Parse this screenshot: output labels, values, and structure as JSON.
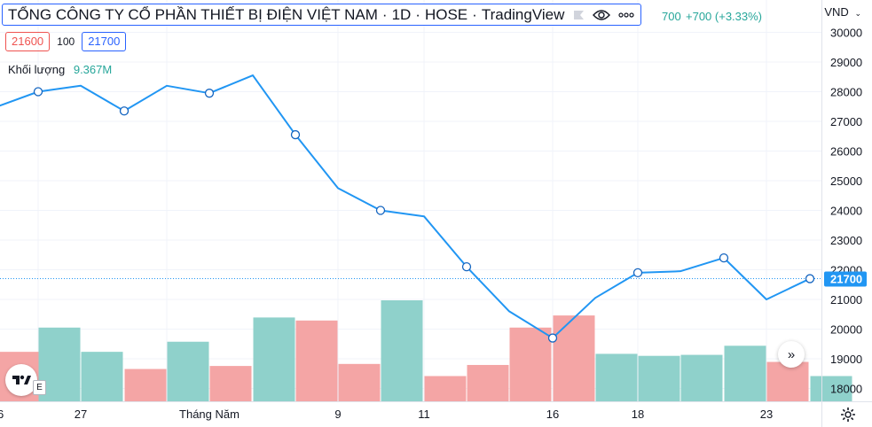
{
  "legend": {
    "title": "TỔNG CÔNG TY CỔ PHẦN THIẾT BỊ ĐIỆN VIỆT NAM",
    "interval": "1D",
    "exchange": "HOSE",
    "provider": "TradingView",
    "icons": [
      "flag-icon",
      "eye-icon",
      "more-icon"
    ],
    "change_partial": "700",
    "change": "+700 (+3.33%)",
    "open_price": "21600",
    "lot": "100",
    "close_price": "21700"
  },
  "volume": {
    "label": "Khối lượng",
    "value": "9.367M"
  },
  "currency": "VND",
  "last_price_label": "21700",
  "colors": {
    "line": "#2196f3",
    "up_volume": "#8fd1cb",
    "down_volume": "#f4a5a5",
    "price_tag": "#2196f3",
    "text_green": "#26a69a",
    "text_red": "#ef5350"
  },
  "chart_data": {
    "type": "line",
    "y_ticks": [
      "30000",
      "29000",
      "28000",
      "27000",
      "26000",
      "25000",
      "24000",
      "23000",
      "22000",
      "21000",
      "20000",
      "19000",
      "18000"
    ],
    "ylim": [
      17800,
      30300
    ],
    "x_ticks": [
      "6",
      "27",
      "Tháng Năm",
      "9",
      "11",
      "16",
      "18",
      "23"
    ],
    "series": [
      {
        "values": [
          27500,
          28000,
          28200,
          27350,
          28200,
          27950,
          28550,
          26550,
          24750,
          24000,
          23800,
          22100,
          20600,
          19700,
          21050,
          21900,
          21950,
          22400,
          21000,
          21700
        ],
        "markers": [
          false,
          true,
          false,
          true,
          false,
          true,
          false,
          true,
          false,
          true,
          false,
          true,
          false,
          true,
          false,
          true,
          false,
          true,
          false,
          true
        ]
      }
    ],
    "volume_bars": [
      {
        "dir": "down",
        "level": 0.49
      },
      {
        "dir": "up",
        "level": 0.73
      },
      {
        "dir": "up",
        "level": 0.49
      },
      {
        "dir": "down",
        "level": 0.32
      },
      {
        "dir": "up",
        "level": 0.59
      },
      {
        "dir": "down",
        "level": 0.35
      },
      {
        "dir": "up",
        "level": 0.83
      },
      {
        "dir": "down",
        "level": 0.8
      },
      {
        "dir": "down",
        "level": 0.37
      },
      {
        "dir": "up",
        "level": 1.0
      },
      {
        "dir": "down",
        "level": 0.25
      },
      {
        "dir": "down",
        "level": 0.36
      },
      {
        "dir": "down",
        "level": 0.73
      },
      {
        "dir": "down",
        "level": 0.85
      },
      {
        "dir": "up",
        "level": 0.47
      },
      {
        "dir": "up",
        "level": 0.45
      },
      {
        "dir": "up",
        "level": 0.46
      },
      {
        "dir": "up",
        "level": 0.55
      },
      {
        "dir": "down",
        "level": 0.39
      },
      {
        "dir": "up",
        "level": 0.25
      }
    ]
  }
}
